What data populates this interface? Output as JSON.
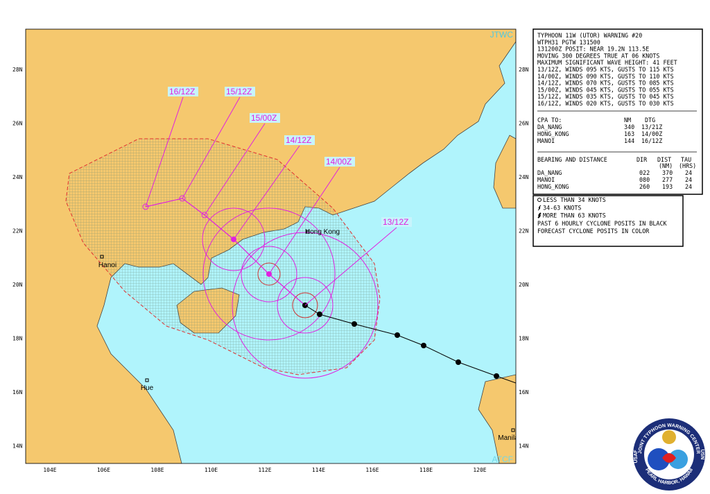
{
  "map": {
    "attribution": "JTWC",
    "watermark": "ATCF",
    "lat_labels": [
      "28N",
      "26N",
      "24N",
      "22N",
      "20N",
      "18N",
      "16N",
      "14N"
    ],
    "lon_labels": [
      "104E",
      "106E",
      "108E",
      "110E",
      "112E",
      "114E",
      "116E",
      "118E",
      "120E"
    ],
    "places": [
      "Hong Kong",
      "Hanoi",
      "Hue",
      "Manila"
    ],
    "forecast_labels": [
      "16/12Z",
      "15/12Z",
      "15/00Z",
      "14/12Z",
      "14/00Z",
      "13/12Z"
    ]
  },
  "warning": {
    "lines": [
      "TYPHOON 11W (UTOR) WARNING #20",
      "WTPH31 PGTW 131500",
      "131200Z POSIT: NEAR 19.2N 113.5E",
      "MOVING 300 DEGREES TRUE AT 06 KNOTS",
      "MAXIMUM SIGNIFICANT WAVE HEIGHT: 41 FEET",
      "13/12Z, WINDS 095 KTS, GUSTS TO 115 KTS",
      "14/00Z, WINDS 090 KTS, GUSTS TO 110 KTS",
      "14/12Z, WINDS 070 KTS, GUSTS TO 085 KTS",
      "15/00Z, WINDS 045 KTS, GUSTS TO 055 KTS",
      "15/12Z, WINDS 035 KTS, GUSTS TO 045 KTS",
      "16/12Z, WINDS 020 KTS, GUSTS TO 030 KTS"
    ]
  },
  "cpa": {
    "title": "CPA TO:",
    "headers": [
      "NM",
      "DTG"
    ],
    "rows": [
      [
        "DA_NANG",
        "340",
        "13/21Z"
      ],
      [
        "HONG_KONG",
        "163",
        "14/00Z"
      ],
      [
        "MANOI",
        "144",
        "16/12Z"
      ]
    ]
  },
  "bearing": {
    "title": "BEARING AND DISTANCE",
    "headers": [
      "DIR",
      "DIST",
      "TAU"
    ],
    "units": [
      "(NM)",
      "(HRS)"
    ],
    "rows": [
      [
        "DA_NANG",
        "022",
        "370",
        "24"
      ],
      [
        "MANOI",
        "080",
        "277",
        "24"
      ],
      [
        "HONG_KONG",
        "260",
        "193",
        "24"
      ]
    ]
  },
  "legend": {
    "lines": [
      "LESS THAN 34 KNOTS",
      "34-63 KNOTS",
      "MORE THAN 63 KNOTS",
      "PAST 6 HOURLY CYCLONE POSITS IN BLACK",
      "FORECAST CYCLONE POSITS IN COLOR"
    ]
  },
  "seal": {
    "top": "JOINT TYPHOON WARNING CENTER",
    "bottom": "PEARL HARBOR, HAWAII",
    "left": "USAF",
    "right": "USN"
  }
}
